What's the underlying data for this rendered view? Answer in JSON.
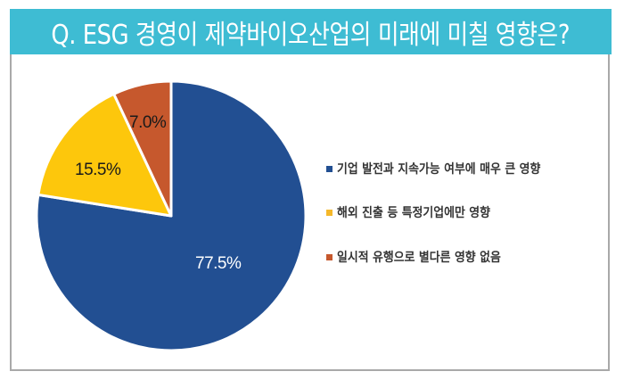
{
  "title": "Q. ESG 경영이 제약바이오산업의 미래에 미칠 영향은?",
  "colors": {
    "title_bg": "#3ebcd3",
    "series": [
      "#224f92",
      "#fdc70c",
      "#c6582d"
    ]
  },
  "labels": {
    "slice0": "77.5%",
    "slice1": "15.5%",
    "slice2": "7.0%"
  },
  "legend": {
    "item0": "기업 발전과 지속가능 여부에 매우 큰 영향",
    "item1": "해외 진출 등 특정기업에만 영향",
    "item2": "일시적 유행으로 별다른 영향 없음"
  },
  "chart_data": {
    "type": "pie",
    "title": "Q. ESG 경영이 제약바이오산업의 미래에 미칠 영향은?",
    "categories": [
      "기업 발전과 지속가능 여부에 매우 큰 영향",
      "해외 진출 등 특정기업에만 영향",
      "일시적 유행으로 별다른 영향 없음"
    ],
    "values": [
      77.5,
      15.5,
      7.0
    ],
    "unit": "%",
    "colors": [
      "#224f92",
      "#fdc70c",
      "#c6582d"
    ],
    "start_angle": "12 o'clock, clockwise",
    "legend_position": "right",
    "data_labels": [
      "77.5%",
      "15.5%",
      "7.0%"
    ]
  }
}
